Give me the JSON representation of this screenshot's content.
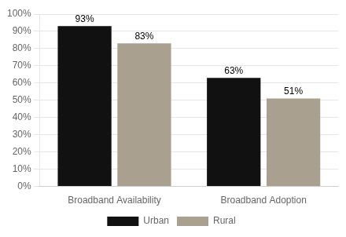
{
  "chart_data": {
    "type": "bar",
    "categories": [
      "Broadband Availability",
      "Broadband Adoption"
    ],
    "series": [
      {
        "name": "Urban",
        "color": "#111111",
        "values": [
          0.93,
          0.63
        ],
        "value_labels": [
          "93%",
          "63%"
        ]
      },
      {
        "name": "Rural",
        "color": "#aaa090",
        "values": [
          0.83,
          0.51
        ],
        "value_labels": [
          "83%",
          "51%"
        ]
      }
    ],
    "ylim": [
      0,
      1.0
    ],
    "yticks": [
      {
        "value": 0.0,
        "label": "0%"
      },
      {
        "value": 0.1,
        "label": "10%"
      },
      {
        "value": 0.2,
        "label": "20%"
      },
      {
        "value": 0.3,
        "label": "30%"
      },
      {
        "value": 0.4,
        "label": "40%"
      },
      {
        "value": 0.5,
        "label": "50%"
      },
      {
        "value": 0.6,
        "label": "60%"
      },
      {
        "value": 0.7,
        "label": "70%"
      },
      {
        "value": 0.8,
        "label": "80%"
      },
      {
        "value": 0.9,
        "label": "90%"
      },
      {
        "value": 1.0,
        "label": "100%"
      }
    ],
    "grid": true,
    "legend": "bottom",
    "data_labels": true
  }
}
